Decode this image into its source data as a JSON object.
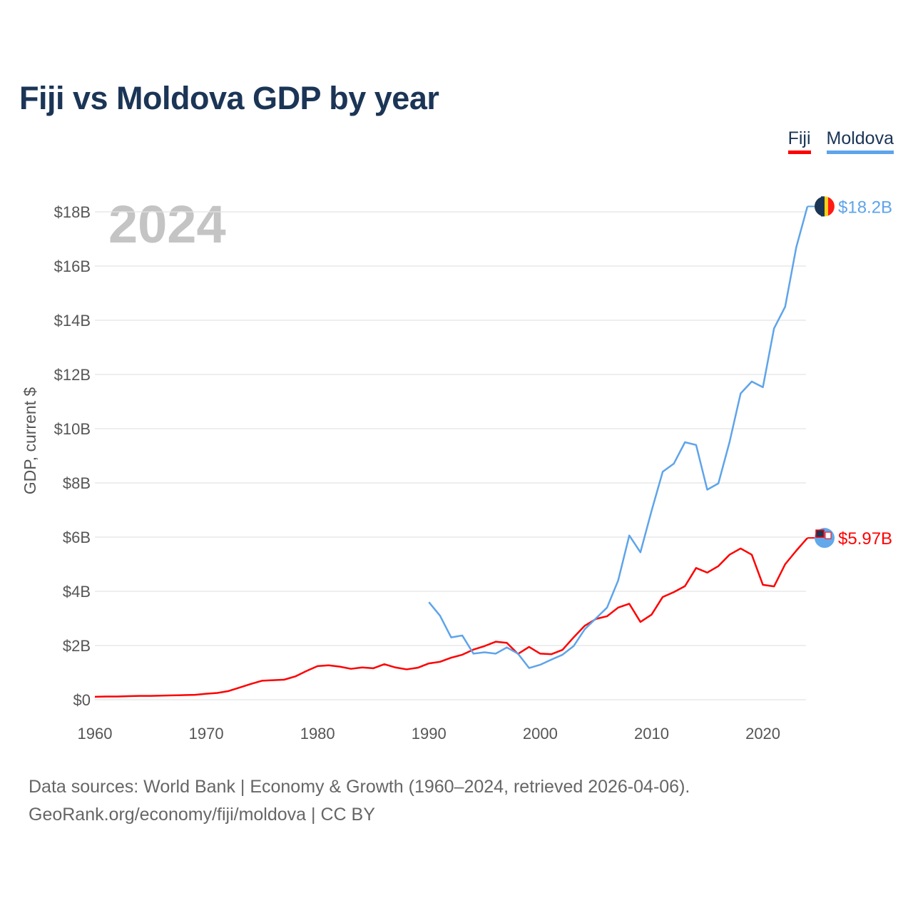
{
  "title": "Fiji vs Moldova GDP by year",
  "legend": [
    {
      "label": "Fiji",
      "color": "#ff0000"
    },
    {
      "label": "Moldova",
      "color": "#5ea4ea"
    }
  ],
  "source_line1": "Data sources: World Bank | Economy & Growth (1960–2024, retrieved 2026-04-06).",
  "source_line2": "GeoRank.org/economy/fiji/moldova | CC BY",
  "chart_data": {
    "type": "line",
    "title": "Fiji vs Moldova GDP by year",
    "year_label": "2024",
    "xlabel": "",
    "ylabel": "GDP, current $",
    "xlim": [
      1960,
      2024
    ],
    "ylim": [
      0,
      18
    ],
    "x_ticks": [
      1960,
      1970,
      1980,
      1990,
      2000,
      2010,
      2020
    ],
    "y_ticks": [
      0,
      2,
      4,
      6,
      8,
      10,
      12,
      14,
      16,
      18
    ],
    "y_tick_labels": [
      "$0",
      "$2B",
      "$4B",
      "$6B",
      "$8B",
      "$10B",
      "$12B",
      "$14B",
      "$16B",
      "$18B"
    ],
    "grid": true,
    "legend_position": "top-right",
    "units": "billion USD",
    "series": [
      {
        "name": "Fiji",
        "color": "#ff0000",
        "end_label": "$5.97B",
        "start_year": 1960,
        "values": [
          0.11,
          0.12,
          0.12,
          0.13,
          0.14,
          0.14,
          0.15,
          0.16,
          0.17,
          0.18,
          0.22,
          0.25,
          0.32,
          0.45,
          0.58,
          0.7,
          0.72,
          0.74,
          0.86,
          1.06,
          1.24,
          1.27,
          1.22,
          1.14,
          1.19,
          1.16,
          1.31,
          1.19,
          1.12,
          1.18,
          1.34,
          1.4,
          1.55,
          1.66,
          1.85,
          1.98,
          2.14,
          2.1,
          1.69,
          1.95,
          1.7,
          1.68,
          1.84,
          2.3,
          2.73,
          2.98,
          3.08,
          3.4,
          3.54,
          2.87,
          3.14,
          3.79,
          3.97,
          4.19,
          4.86,
          4.69,
          4.93,
          5.35,
          5.58,
          5.35,
          4.24,
          4.18,
          5.0,
          5.5,
          5.97
        ]
      },
      {
        "name": "Moldova",
        "color": "#5ea4ea",
        "end_label": "$18.2B",
        "start_year": 1990,
        "values": [
          3.6,
          3.1,
          2.3,
          2.37,
          1.7,
          1.75,
          1.7,
          1.93,
          1.7,
          1.17,
          1.29,
          1.48,
          1.66,
          1.98,
          2.6,
          3.0,
          3.4,
          4.4,
          6.06,
          5.44,
          6.97,
          8.41,
          8.71,
          9.5,
          9.4,
          7.75,
          7.98,
          9.5,
          11.3,
          11.74,
          11.53,
          13.7,
          14.5,
          16.7,
          18.2
        ]
      }
    ]
  }
}
